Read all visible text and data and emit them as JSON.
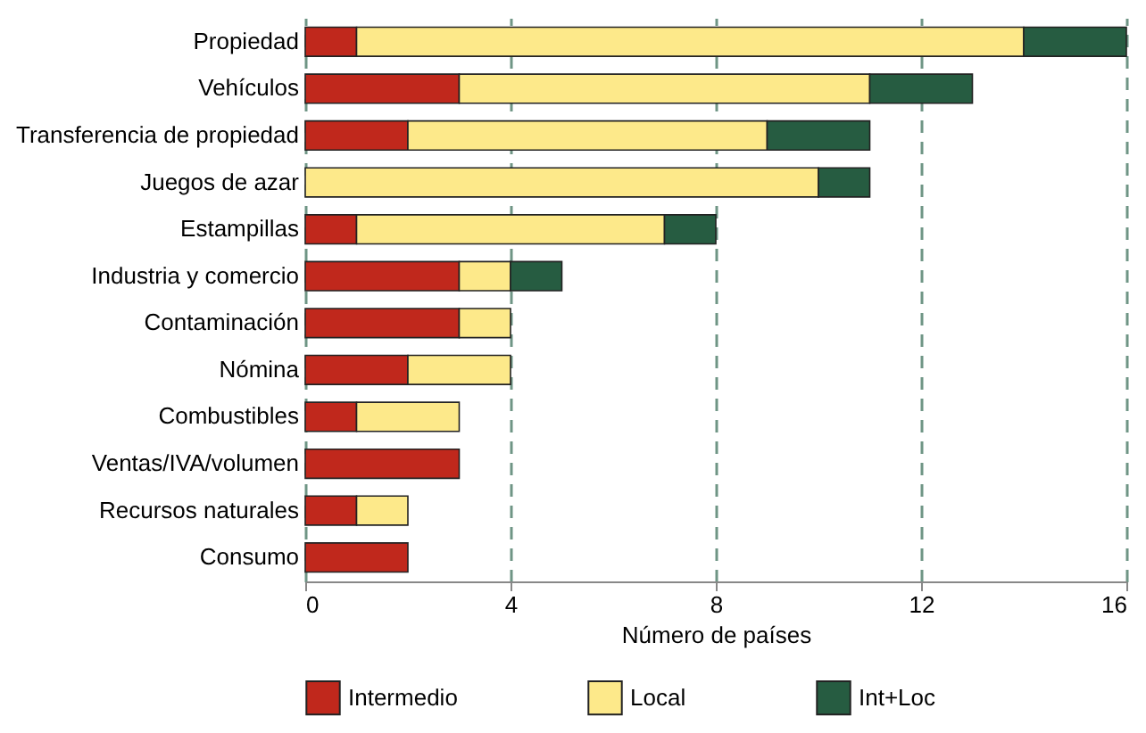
{
  "chart_data": {
    "type": "bar",
    "orientation": "horizontal",
    "stacked": true,
    "xlabel": "Número de países",
    "categories": [
      "Propiedad",
      "Vehículos",
      "Transferencia de propiedad",
      "Juegos de azar",
      "Estampillas",
      "Industria y comercio",
      "Contaminación",
      "Nómina",
      "Combustibles",
      "Ventas/IVA/volumen",
      "Recursos naturales",
      "Consumo"
    ],
    "series": [
      {
        "name": "Intermedio",
        "color": "#c0281c",
        "values": [
          1,
          3,
          2,
          0,
          1,
          3,
          3,
          2,
          1,
          3,
          1,
          2
        ]
      },
      {
        "name": "Local",
        "color": "#fde98a",
        "values": [
          13,
          8,
          7,
          10,
          6,
          1,
          1,
          2,
          2,
          0,
          1,
          0
        ]
      },
      {
        "name": "Int+Loc",
        "color": "#265c41",
        "values": [
          2,
          2,
          2,
          1,
          1,
          1,
          0,
          0,
          0,
          0,
          0,
          0
        ]
      }
    ],
    "xlim": [
      0,
      16
    ],
    "xticks": [
      0,
      4,
      8,
      12,
      16
    ],
    "grid": "x",
    "legend": "bottom"
  }
}
